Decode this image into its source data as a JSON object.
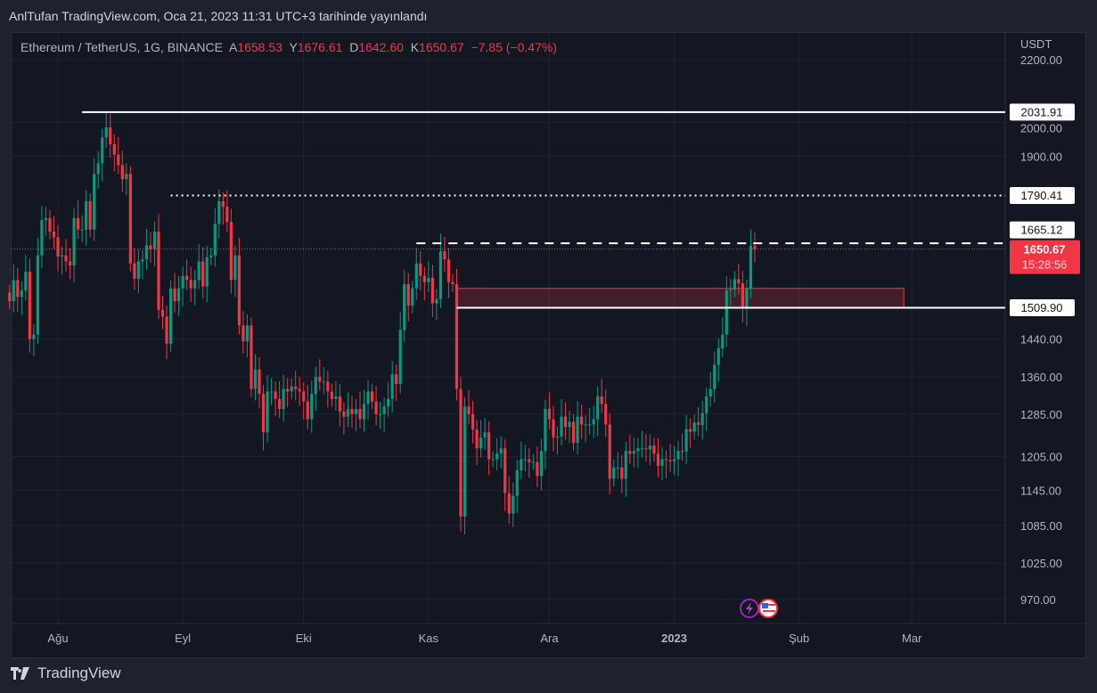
{
  "header": {
    "published": "AnlTufan TradingView.com, Oca 21, 2023 11:31 UTC+3 tarihinde yayınlandı"
  },
  "legend": {
    "symbol": "Ethereum / TetherUS, 1G, BINANCE",
    "o_label": "A",
    "o": "1658.53",
    "h_label": "Y",
    "h": "1676.61",
    "l_label": "D",
    "l": "1642.60",
    "c_label": "K",
    "c": "1650.67",
    "change": "−7.85 (−0.47%)"
  },
  "axis": {
    "currency": "USDT"
  },
  "footer": {
    "brand": "TradingView"
  },
  "colors": {
    "up": "#089981",
    "down": "#f23645",
    "bg": "#131722",
    "grid": "#1f2330"
  },
  "chart_data": {
    "type": "candlestick",
    "start_date": "2022-07-20",
    "scale": "log",
    "ylim": [
      930,
      2250
    ],
    "y_ticks": [
      "2200.00",
      "2000.00",
      "1900.00",
      "1440.00",
      "1360.00",
      "1285.00",
      "1205.00",
      "1145.00",
      "1085.00",
      "1025.00",
      "970.00"
    ],
    "x_ticks": [
      {
        "label": "Ağu",
        "date": "2022-08-01"
      },
      {
        "label": "Eyl",
        "date": "2022-09-01"
      },
      {
        "label": "Eki",
        "date": "2022-10-01"
      },
      {
        "label": "Kas",
        "date": "2022-11-01"
      },
      {
        "label": "Ara",
        "date": "2022-12-01"
      },
      {
        "label": "2023",
        "date": "2023-01-01"
      },
      {
        "label": "Şub",
        "date": "2023-02-01"
      },
      {
        "label": "Mar",
        "date": "2023-03-01"
      }
    ],
    "first_open": 1545,
    "closes": [
      1525,
      1575,
      1535,
      1550,
      1595,
      1440,
      1450,
      1635,
      1725,
      1730,
      1695,
      1680,
      1632,
      1635,
      1620,
      1610,
      1730,
      1700,
      1700,
      1775,
      1700,
      1850,
      1880,
      1955,
      1985,
      1935,
      1905,
      1875,
      1835,
      1850,
      1615,
      1578,
      1620,
      1625,
      1660,
      1650,
      1695,
      1505,
      1490,
      1430,
      1555,
      1525,
      1555,
      1585,
      1575,
      1555,
      1575,
      1620,
      1560,
      1630,
      1635,
      1715,
      1775,
      1760,
      1720,
      1575,
      1635,
      1470,
      1435,
      1470,
      1335,
      1375,
      1325,
      1250,
      1330,
      1330,
      1315,
      1295,
      1335,
      1330,
      1340,
      1335,
      1330,
      1310,
      1275,
      1325,
      1360,
      1350,
      1350,
      1330,
      1315,
      1320,
      1290,
      1280,
      1295,
      1285,
      1295,
      1275,
      1305,
      1330,
      1310,
      1285,
      1285,
      1300,
      1315,
      1365,
      1345,
      1460,
      1565,
      1515,
      1555,
      1615,
      1585,
      1570,
      1580,
      1520,
      1530,
      1645,
      1625,
      1570,
      1565,
      1335,
      1100,
      1300,
      1285,
      1255,
      1220,
      1240,
      1250,
      1200,
      1200,
      1210,
      1220,
      1140,
      1105,
      1135,
      1180,
      1200,
      1200,
      1195,
      1195,
      1170,
      1215,
      1295,
      1275,
      1240,
      1242,
      1280,
      1260,
      1270,
      1230,
      1280,
      1265,
      1265,
      1265,
      1275,
      1320,
      1305,
      1265,
      1165,
      1185,
      1185,
      1165,
      1215,
      1210,
      1215,
      1220,
      1220,
      1218,
      1225,
      1210,
      1188,
      1200,
      1198,
      1196,
      1200,
      1215,
      1214,
      1256,
      1251,
      1269,
      1264,
      1287,
      1320,
      1335,
      1385,
      1420,
      1450,
      1550,
      1552,
      1577,
      1567,
      1510,
      1555,
      1658.53,
      1650.67
    ],
    "levels": [
      {
        "value": "2031.91",
        "style": "solid",
        "from": "2022-08-07"
      },
      {
        "value": "1790.41",
        "style": "dotted",
        "from": "2022-08-29"
      },
      {
        "value": "1665.12",
        "style": "dashed",
        "from": "2022-10-29"
      },
      {
        "value": "1509.90",
        "style": "solid",
        "from": "2022-11-08"
      }
    ],
    "zone": {
      "top": 1555,
      "bottom": 1510,
      "from": "2022-11-08",
      "to": "2023-02-27"
    },
    "last_price": "1650.67",
    "countdown": "15:28:56"
  }
}
